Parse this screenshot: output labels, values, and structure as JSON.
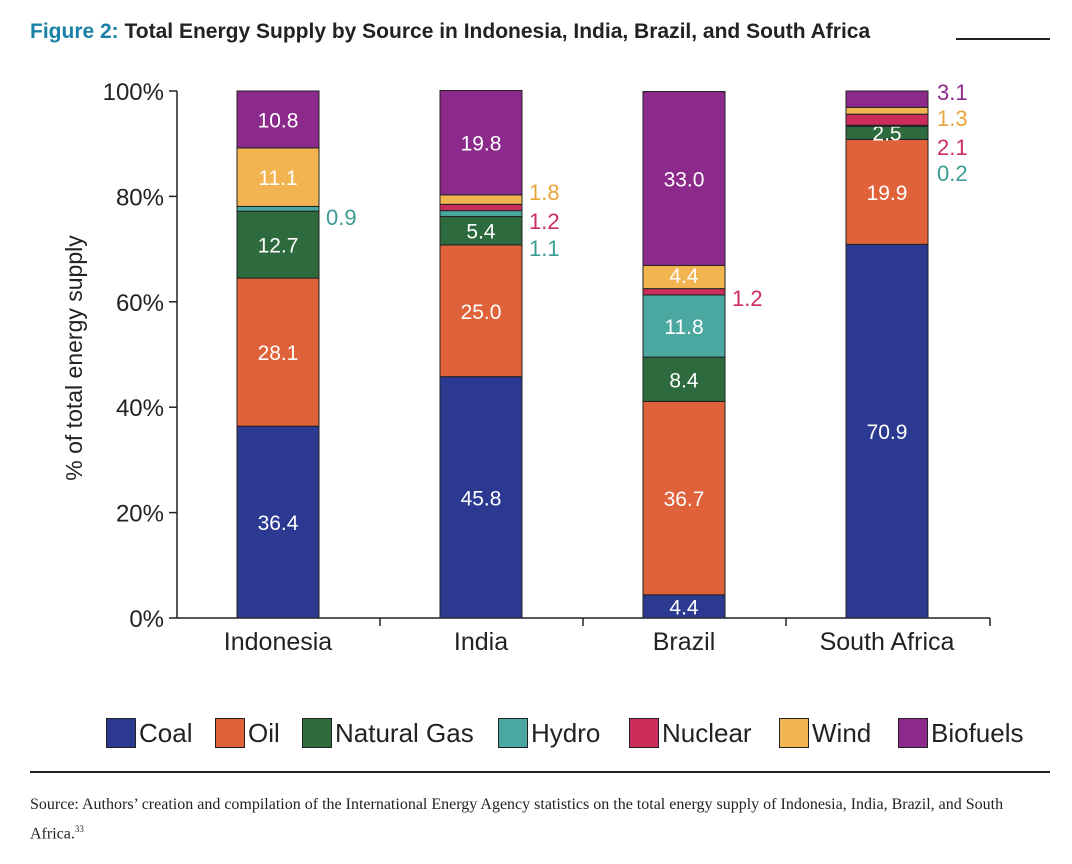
{
  "figure": {
    "label": "Figure 2:",
    "title": "Total Energy Supply by Source in Indonesia, India, Brazil, and South Africa"
  },
  "chart_data": {
    "type": "bar",
    "stacked": true,
    "title": "Total Energy Supply by Source in Indonesia, India, Brazil, and South Africa",
    "xlabel": "",
    "ylabel": "% of total energy supply",
    "ylim": [
      0,
      100
    ],
    "yticks": [
      "0%",
      "20%",
      "40%",
      "60%",
      "80%",
      "100%"
    ],
    "categories": [
      "Indonesia",
      "India",
      "Brazil",
      "South Africa"
    ],
    "series": [
      {
        "name": "Coal",
        "color": "#2b3990",
        "values": [
          36.4,
          45.8,
          4.4,
          70.9
        ],
        "labels": [
          "36.4",
          "45.8",
          "4.4",
          "70.9"
        ]
      },
      {
        "name": "Oil",
        "color": "#e0623a",
        "values": [
          28.1,
          25.0,
          36.7,
          19.9
        ],
        "labels": [
          "28.1",
          "25.0",
          "36.7",
          "19.9"
        ]
      },
      {
        "name": "Natural Gas",
        "color": "#2d6a3e",
        "values": [
          12.7,
          5.4,
          8.4,
          2.5
        ],
        "labels": [
          "12.7",
          "5.4",
          "8.4",
          "2.5"
        ]
      },
      {
        "name": "Hydro",
        "color": "#4aa8a0",
        "values": [
          0.9,
          1.1,
          11.8,
          0.2
        ],
        "labels": [
          "0.9",
          "1.1",
          "11.8",
          "0.2"
        ]
      },
      {
        "name": "Nuclear",
        "color": "#cc2e5c",
        "values": [
          0,
          1.2,
          1.2,
          2.1
        ],
        "labels": [
          "",
          "1.2",
          "1.2",
          "2.1"
        ]
      },
      {
        "name": "Wind",
        "color": "#f2b451",
        "values": [
          11.1,
          1.8,
          4.4,
          1.3
        ],
        "labels": [
          "11.1",
          "1.8",
          "4.4",
          "1.3"
        ]
      },
      {
        "name": "Biofuels",
        "color": "#8c2a8c",
        "values": [
          10.8,
          19.8,
          33.0,
          3.1
        ],
        "labels": [
          "10.8",
          "19.8",
          "33.0",
          "3.1"
        ]
      }
    ],
    "legend_position": "bottom"
  },
  "source": {
    "text": "Source: Authors’ creation and compilation of the International Energy Agency statistics on the total energy supply of Indonesia, India, Brazil, and South Africa.",
    "footnote": "33"
  }
}
